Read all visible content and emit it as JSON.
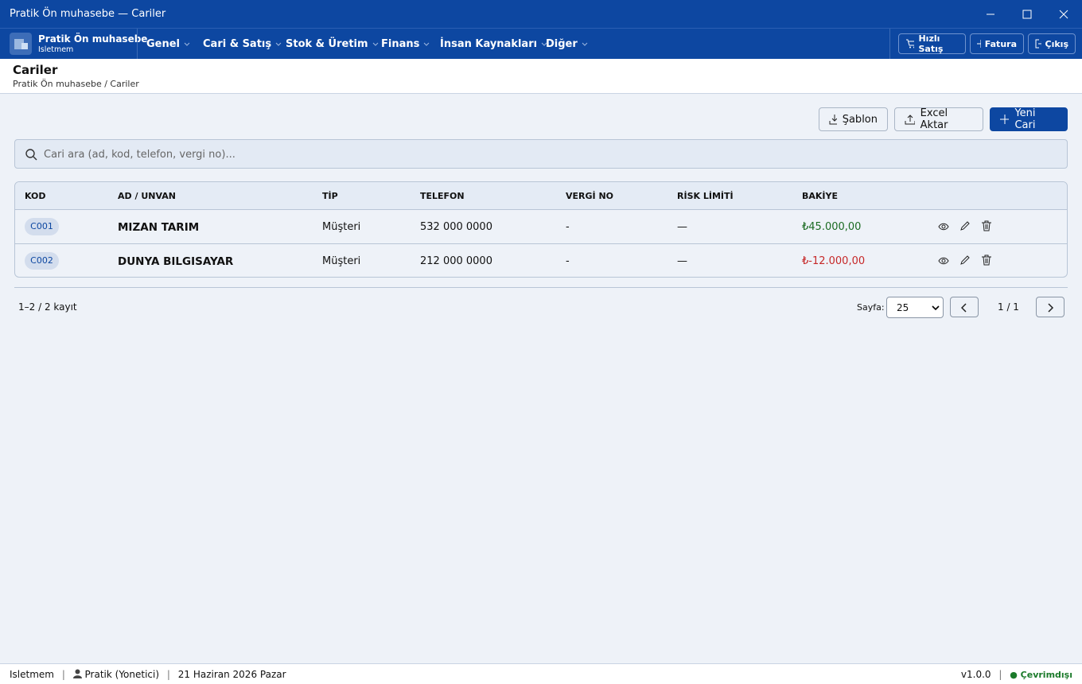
{
  "window": {
    "title": "Pratik Ön muhasebe — Cariler"
  },
  "app": {
    "name": "Pratik Ön muhasebe",
    "company": "Isletmem"
  },
  "menu": [
    "Genel",
    "Cari & Satış",
    "Stok & Üretim",
    "Finans",
    "İnsan Kaynakları",
    "Diğer"
  ],
  "actions": [
    "Hızlı Satış",
    "Fatura",
    "Çıkış"
  ],
  "page": {
    "title": "Cariler",
    "breadcrumb": "Pratik Ön muhasebe / Cariler"
  },
  "toolbar": [
    "Şablon",
    "Excel Aktar",
    "Yeni Cari"
  ],
  "search": {
    "placeholder": "Cari ara (ad, kod, telefon, vergi no)..."
  },
  "table": {
    "columns": [
      "KOD",
      "AD / UNVAN",
      "TİP",
      "TELEFON",
      "VERGİ NO",
      "RİSK LİMİTİ",
      "BAKİYE"
    ],
    "rows": [
      [
        "C001",
        "MIZAN TARIM",
        "Müşteri",
        "532 000 0000",
        "-",
        "—",
        "₺45.000,00"
      ],
      [
        "C002",
        "DUNYA BILGISAYAR",
        "Müşteri",
        "212 000 0000",
        "-",
        "—",
        "₺-12.000,00"
      ]
    ]
  },
  "pagination": {
    "summary": "1–2 / 2 kayıt",
    "page_label": "Sayfa:",
    "page_size": "25",
    "page": "1 / 1"
  },
  "status": {
    "company": "Isletmem",
    "user": "Pratik (Yonetici)",
    "date": "21 Haziran 2026 Pazar",
    "version": "v1.0.0",
    "connection": "Çevrimdışı"
  }
}
